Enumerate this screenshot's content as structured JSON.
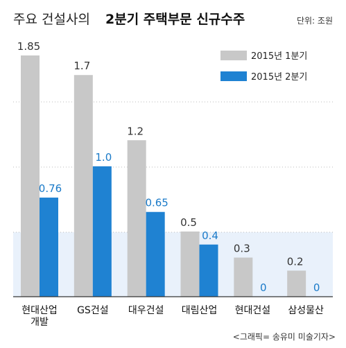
{
  "chart_data": {
    "type": "bar",
    "title_prefix": "주요 건설사의",
    "title_main": "2분기 주택부문 신규수주",
    "unit": "단위: 조원",
    "categories": [
      [
        "현대산업",
        "개발"
      ],
      [
        "GS건설"
      ],
      [
        "대우건설"
      ],
      [
        "대림산업"
      ],
      [
        "현대건설"
      ],
      [
        "삼성물산"
      ]
    ],
    "series": [
      {
        "name": "2015년 1분기",
        "values": [
          1.85,
          1.7,
          1.2,
          0.5,
          0.3,
          0.2
        ],
        "labels": [
          "1.85",
          "1.7",
          "1.2",
          "0.5",
          "0.3",
          "0.2"
        ],
        "color": "#c8c8c8",
        "label_color": "#333333"
      },
      {
        "name": "2015년 2분기",
        "values": [
          0.76,
          1.0,
          0.65,
          0.4,
          0,
          0
        ],
        "labels": [
          "0.76",
          "1.0",
          "0.65",
          "0.4",
          "0",
          "0"
        ],
        "color": "#1f82d2",
        "label_color": "#1a7ac8"
      }
    ],
    "ylim": [
      0,
      1.85
    ],
    "grid": true,
    "legend_position": "top-right"
  },
  "credit": "<그래픽= 송유미 미술기자>"
}
